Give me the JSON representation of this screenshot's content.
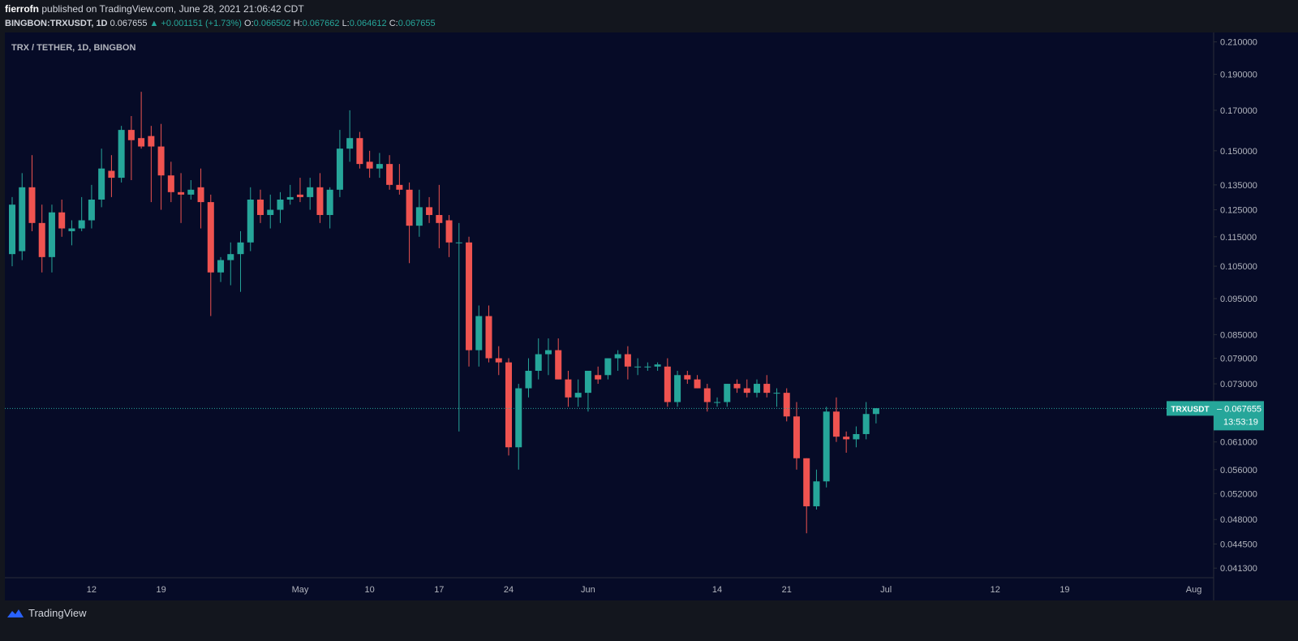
{
  "header": {
    "author": "fierrofn",
    "published_text": "published on TradingView.com, June 28, 2021 21:06:42 CDT",
    "symbol_line": "BINGBON:TRXUSDT, 1D",
    "last_price": "0.067655",
    "change": "▲ +0.001151 (+1.73%)",
    "o_label": "O:",
    "o_value": "0.066502",
    "h_label": "H:",
    "h_value": "0.067662",
    "l_label": "L:",
    "l_value": "0.064612",
    "c_label": "C:",
    "c_value": "0.067655"
  },
  "chart_title": "TRX / TETHER, 1D, BINGBON",
  "price_label": {
    "symbol": "TRXUSDT",
    "price": "0.067655",
    "countdown": "13:53:19"
  },
  "footer": {
    "brand": "TradingView"
  },
  "colors": {
    "background": "#060b27",
    "up": "#26a69a",
    "down": "#ef5350",
    "axis_text": "#b2b5be"
  },
  "chart_data": {
    "type": "candlestick",
    "scale": "log",
    "ylim": [
      0.0405,
      0.213
    ],
    "y_ticks": [
      "0.210000",
      "0.190000",
      "0.170000",
      "0.150000",
      "0.135000",
      "0.125000",
      "0.115000",
      "0.105000",
      "0.095000",
      "0.085000",
      "0.079000",
      "0.073000",
      "0.061000",
      "0.056000",
      "0.052000",
      "0.048000",
      "0.044500",
      "0.041300"
    ],
    "x_labels": [
      {
        "label": "12",
        "date": "2021-04-12"
      },
      {
        "label": "19",
        "date": "2021-04-19"
      },
      {
        "label": "May",
        "date": "2021-05-03"
      },
      {
        "label": "10",
        "date": "2021-05-10"
      },
      {
        "label": "17",
        "date": "2021-05-17"
      },
      {
        "label": "24",
        "date": "2021-05-24"
      },
      {
        "label": "Jun",
        "date": "2021-06-01"
      },
      {
        "label": "14",
        "date": "2021-06-14"
      },
      {
        "label": "21",
        "date": "2021-06-21"
      },
      {
        "label": "Jul",
        "date": "2021-07-01"
      },
      {
        "label": "12",
        "date": "2021-07-12"
      },
      {
        "label": "19",
        "date": "2021-07-19"
      },
      {
        "label": "Aug",
        "date": "2021-08-01"
      }
    ],
    "last_price": 0.067655,
    "candles": [
      {
        "date": "2021-04-04",
        "o": 0.109,
        "h": 0.13,
        "l": 0.105,
        "c": 0.127
      },
      {
        "date": "2021-04-05",
        "o": 0.11,
        "h": 0.14,
        "l": 0.107,
        "c": 0.134
      },
      {
        "date": "2021-04-06",
        "o": 0.134,
        "h": 0.148,
        "l": 0.117,
        "c": 0.12
      },
      {
        "date": "2021-04-07",
        "o": 0.12,
        "h": 0.127,
        "l": 0.103,
        "c": 0.108
      },
      {
        "date": "2021-04-08",
        "o": 0.108,
        "h": 0.127,
        "l": 0.103,
        "c": 0.124
      },
      {
        "date": "2021-04-09",
        "o": 0.124,
        "h": 0.129,
        "l": 0.115,
        "c": 0.118
      },
      {
        "date": "2021-04-10",
        "o": 0.117,
        "h": 0.121,
        "l": 0.112,
        "c": 0.118
      },
      {
        "date": "2021-04-11",
        "o": 0.118,
        "h": 0.13,
        "l": 0.117,
        "c": 0.121
      },
      {
        "date": "2021-04-12",
        "o": 0.121,
        "h": 0.135,
        "l": 0.118,
        "c": 0.129
      },
      {
        "date": "2021-04-13",
        "o": 0.129,
        "h": 0.151,
        "l": 0.126,
        "c": 0.142
      },
      {
        "date": "2021-04-14",
        "o": 0.141,
        "h": 0.148,
        "l": 0.13,
        "c": 0.138
      },
      {
        "date": "2021-04-15",
        "o": 0.138,
        "h": 0.162,
        "l": 0.136,
        "c": 0.16
      },
      {
        "date": "2021-04-16",
        "o": 0.16,
        "h": 0.167,
        "l": 0.137,
        "c": 0.155
      },
      {
        "date": "2021-04-17",
        "o": 0.156,
        "h": 0.18,
        "l": 0.151,
        "c": 0.152
      },
      {
        "date": "2021-04-18",
        "o": 0.157,
        "h": 0.162,
        "l": 0.128,
        "c": 0.152
      },
      {
        "date": "2021-04-19",
        "o": 0.152,
        "h": 0.163,
        "l": 0.125,
        "c": 0.139
      },
      {
        "date": "2021-04-20",
        "o": 0.139,
        "h": 0.145,
        "l": 0.128,
        "c": 0.132
      },
      {
        "date": "2021-04-21",
        "o": 0.132,
        "h": 0.14,
        "l": 0.12,
        "c": 0.131
      },
      {
        "date": "2021-04-22",
        "o": 0.131,
        "h": 0.137,
        "l": 0.129,
        "c": 0.133
      },
      {
        "date": "2021-04-23",
        "o": 0.134,
        "h": 0.142,
        "l": 0.118,
        "c": 0.128
      },
      {
        "date": "2021-04-24",
        "o": 0.128,
        "h": 0.131,
        "l": 0.09,
        "c": 0.103
      },
      {
        "date": "2021-04-25",
        "o": 0.103,
        "h": 0.108,
        "l": 0.1,
        "c": 0.107
      },
      {
        "date": "2021-04-26",
        "o": 0.107,
        "h": 0.113,
        "l": 0.099,
        "c": 0.109
      },
      {
        "date": "2021-04-27",
        "o": 0.109,
        "h": 0.117,
        "l": 0.097,
        "c": 0.113
      },
      {
        "date": "2021-04-28",
        "o": 0.113,
        "h": 0.134,
        "l": 0.11,
        "c": 0.129
      },
      {
        "date": "2021-04-29",
        "o": 0.129,
        "h": 0.133,
        "l": 0.12,
        "c": 0.123
      },
      {
        "date": "2021-04-30",
        "o": 0.123,
        "h": 0.131,
        "l": 0.118,
        "c": 0.125
      },
      {
        "date": "2021-05-01",
        "o": 0.125,
        "h": 0.132,
        "l": 0.12,
        "c": 0.129
      },
      {
        "date": "2021-05-02",
        "o": 0.129,
        "h": 0.135,
        "l": 0.127,
        "c": 0.13
      },
      {
        "date": "2021-05-03",
        "o": 0.131,
        "h": 0.138,
        "l": 0.128,
        "c": 0.13
      },
      {
        "date": "2021-05-04",
        "o": 0.13,
        "h": 0.138,
        "l": 0.125,
        "c": 0.134
      },
      {
        "date": "2021-05-05",
        "o": 0.134,
        "h": 0.14,
        "l": 0.12,
        "c": 0.123
      },
      {
        "date": "2021-05-06",
        "o": 0.123,
        "h": 0.134,
        "l": 0.118,
        "c": 0.133
      },
      {
        "date": "2021-05-07",
        "o": 0.133,
        "h": 0.16,
        "l": 0.13,
        "c": 0.151
      },
      {
        "date": "2021-05-08",
        "o": 0.151,
        "h": 0.17,
        "l": 0.145,
        "c": 0.156
      },
      {
        "date": "2021-05-09",
        "o": 0.156,
        "h": 0.159,
        "l": 0.142,
        "c": 0.144
      },
      {
        "date": "2021-05-10",
        "o": 0.145,
        "h": 0.15,
        "l": 0.138,
        "c": 0.142
      },
      {
        "date": "2021-05-11",
        "o": 0.142,
        "h": 0.149,
        "l": 0.138,
        "c": 0.144
      },
      {
        "date": "2021-05-12",
        "o": 0.144,
        "h": 0.148,
        "l": 0.133,
        "c": 0.135
      },
      {
        "date": "2021-05-13",
        "o": 0.135,
        "h": 0.144,
        "l": 0.131,
        "c": 0.133
      },
      {
        "date": "2021-05-14",
        "o": 0.133,
        "h": 0.136,
        "l": 0.106,
        "c": 0.119
      },
      {
        "date": "2021-05-15",
        "o": 0.119,
        "h": 0.133,
        "l": 0.115,
        "c": 0.126
      },
      {
        "date": "2021-05-16",
        "o": 0.126,
        "h": 0.13,
        "l": 0.12,
        "c": 0.123
      },
      {
        "date": "2021-05-17",
        "o": 0.123,
        "h": 0.135,
        "l": 0.111,
        "c": 0.12
      },
      {
        "date": "2021-05-18",
        "o": 0.121,
        "h": 0.123,
        "l": 0.108,
        "c": 0.113
      },
      {
        "date": "2021-05-19",
        "o": 0.113,
        "h": 0.12,
        "l": 0.063,
        "c": 0.113
      },
      {
        "date": "2021-05-20",
        "o": 0.113,
        "h": 0.115,
        "l": 0.077,
        "c": 0.081
      },
      {
        "date": "2021-05-21",
        "o": 0.081,
        "h": 0.093,
        "l": 0.077,
        "c": 0.09
      },
      {
        "date": "2021-05-22",
        "o": 0.09,
        "h": 0.093,
        "l": 0.078,
        "c": 0.079
      },
      {
        "date": "2021-05-23",
        "o": 0.079,
        "h": 0.082,
        "l": 0.075,
        "c": 0.078
      },
      {
        "date": "2021-05-24",
        "o": 0.078,
        "h": 0.079,
        "l": 0.0585,
        "c": 0.06
      },
      {
        "date": "2021-05-25",
        "o": 0.06,
        "h": 0.073,
        "l": 0.056,
        "c": 0.072
      },
      {
        "date": "2021-05-26",
        "o": 0.072,
        "h": 0.079,
        "l": 0.07,
        "c": 0.076
      },
      {
        "date": "2021-05-27",
        "o": 0.076,
        "h": 0.084,
        "l": 0.074,
        "c": 0.08
      },
      {
        "date": "2021-05-28",
        "o": 0.08,
        "h": 0.084,
        "l": 0.075,
        "c": 0.081
      },
      {
        "date": "2021-05-29",
        "o": 0.081,
        "h": 0.084,
        "l": 0.074,
        "c": 0.074
      },
      {
        "date": "2021-05-30",
        "o": 0.074,
        "h": 0.076,
        "l": 0.068,
        "c": 0.07
      },
      {
        "date": "2021-05-31",
        "o": 0.07,
        "h": 0.074,
        "l": 0.068,
        "c": 0.071
      },
      {
        "date": "2021-06-01",
        "o": 0.071,
        "h": 0.076,
        "l": 0.067,
        "c": 0.076
      },
      {
        "date": "2021-06-02",
        "o": 0.075,
        "h": 0.077,
        "l": 0.073,
        "c": 0.074
      },
      {
        "date": "2021-06-03",
        "o": 0.075,
        "h": 0.079,
        "l": 0.074,
        "c": 0.079
      },
      {
        "date": "2021-06-04",
        "o": 0.079,
        "h": 0.081,
        "l": 0.076,
        "c": 0.08
      },
      {
        "date": "2021-06-05",
        "o": 0.08,
        "h": 0.082,
        "l": 0.074,
        "c": 0.077
      },
      {
        "date": "2021-06-06",
        "o": 0.077,
        "h": 0.079,
        "l": 0.075,
        "c": 0.077
      },
      {
        "date": "2021-06-07",
        "o": 0.077,
        "h": 0.078,
        "l": 0.076,
        "c": 0.077
      },
      {
        "date": "2021-06-08",
        "o": 0.077,
        "h": 0.078,
        "l": 0.076,
        "c": 0.0775
      },
      {
        "date": "2021-06-09",
        "o": 0.077,
        "h": 0.079,
        "l": 0.068,
        "c": 0.069
      },
      {
        "date": "2021-06-10",
        "o": 0.069,
        "h": 0.076,
        "l": 0.068,
        "c": 0.075
      },
      {
        "date": "2021-06-11",
        "o": 0.075,
        "h": 0.076,
        "l": 0.073,
        "c": 0.074
      },
      {
        "date": "2021-06-12",
        "o": 0.074,
        "h": 0.075,
        "l": 0.072,
        "c": 0.072
      },
      {
        "date": "2021-06-13",
        "o": 0.072,
        "h": 0.073,
        "l": 0.067,
        "c": 0.069
      },
      {
        "date": "2021-06-14",
        "o": 0.069,
        "h": 0.07,
        "l": 0.068,
        "c": 0.069
      },
      {
        "date": "2021-06-15",
        "o": 0.069,
        "h": 0.073,
        "l": 0.068,
        "c": 0.073
      },
      {
        "date": "2021-06-16",
        "o": 0.073,
        "h": 0.074,
        "l": 0.071,
        "c": 0.072
      },
      {
        "date": "2021-06-17",
        "o": 0.072,
        "h": 0.074,
        "l": 0.07,
        "c": 0.071
      },
      {
        "date": "2021-06-18",
        "o": 0.071,
        "h": 0.074,
        "l": 0.07,
        "c": 0.073
      },
      {
        "date": "2021-06-19",
        "o": 0.073,
        "h": 0.075,
        "l": 0.07,
        "c": 0.071
      },
      {
        "date": "2021-06-20",
        "o": 0.071,
        "h": 0.072,
        "l": 0.068,
        "c": 0.071
      },
      {
        "date": "2021-06-21",
        "o": 0.071,
        "h": 0.072,
        "l": 0.065,
        "c": 0.066
      },
      {
        "date": "2021-06-22",
        "o": 0.066,
        "h": 0.069,
        "l": 0.056,
        "c": 0.058
      },
      {
        "date": "2021-06-23",
        "o": 0.058,
        "h": 0.058,
        "l": 0.046,
        "c": 0.05
      },
      {
        "date": "2021-06-24",
        "o": 0.05,
        "h": 0.056,
        "l": 0.0495,
        "c": 0.054
      },
      {
        "date": "2021-06-25",
        "o": 0.054,
        "h": 0.068,
        "l": 0.053,
        "c": 0.067
      },
      {
        "date": "2021-06-26",
        "o": 0.067,
        "h": 0.07,
        "l": 0.061,
        "c": 0.062
      },
      {
        "date": "2021-06-27",
        "o": 0.062,
        "h": 0.063,
        "l": 0.059,
        "c": 0.0615
      },
      {
        "date": "2021-06-28",
        "o": 0.0615,
        "h": 0.064,
        "l": 0.06,
        "c": 0.0625
      },
      {
        "date": "2021-06-29",
        "o": 0.0625,
        "h": 0.069,
        "l": 0.0615,
        "c": 0.0665
      },
      {
        "date": "2021-06-30",
        "o": 0.0665,
        "h": 0.0677,
        "l": 0.0646,
        "c": 0.0677
      }
    ]
  }
}
